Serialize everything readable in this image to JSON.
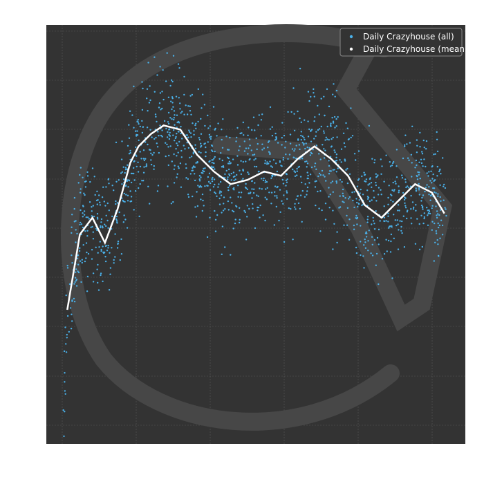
{
  "chart_data": {
    "type": "scatter",
    "title": "",
    "xlabel": "",
    "ylabel": "",
    "xlim": [
      0,
      1
    ],
    "ylim": [
      0,
      1
    ],
    "grid": true,
    "legend_position": "top-right",
    "colors": {
      "background": "#333333",
      "grid": "#5a5a5a",
      "scatter": "#4ab0e8",
      "mean": "#ffffff",
      "watermark": "#474747"
    },
    "series": [
      {
        "name": "Daily Crazyhouse (all)",
        "kind": "scatter"
      },
      {
        "name": "Daily Crazyhouse (mean)",
        "kind": "line",
        "x": [
          0.05,
          0.08,
          0.11,
          0.14,
          0.17,
          0.2,
          0.22,
          0.25,
          0.28,
          0.32,
          0.36,
          0.4,
          0.44,
          0.48,
          0.52,
          0.56,
          0.6,
          0.64,
          0.68,
          0.72,
          0.76,
          0.8,
          0.84,
          0.88,
          0.92,
          0.95
        ],
        "y": [
          0.32,
          0.5,
          0.54,
          0.48,
          0.56,
          0.67,
          0.71,
          0.74,
          0.76,
          0.75,
          0.69,
          0.65,
          0.62,
          0.63,
          0.65,
          0.64,
          0.68,
          0.71,
          0.68,
          0.64,
          0.57,
          0.54,
          0.58,
          0.62,
          0.6,
          0.55
        ]
      }
    ]
  }
}
